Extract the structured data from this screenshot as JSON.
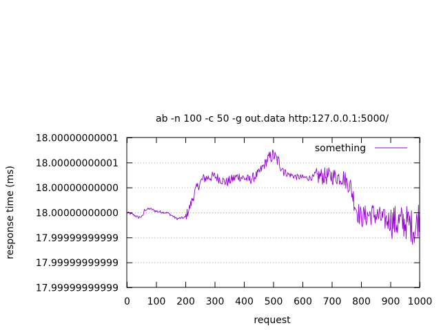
{
  "chart_data": {
    "type": "line",
    "title": "ab -n 100 -c 50 -g out.data http:127.0.0.1:5000/",
    "xlabel": "request",
    "ylabel": "response time (ms)",
    "xlim": [
      0,
      1000
    ],
    "x_ticks": [
      0,
      100,
      200,
      300,
      400,
      500,
      600,
      700,
      800,
      900,
      1000
    ],
    "y_ticks": [
      "17.99999999999",
      "17.99999999999",
      "17.99999999999",
      "18.00000000000",
      "18.00000000000",
      "18.00000000001",
      "18.00000000001"
    ],
    "ylim_levels": [
      0,
      6
    ],
    "grid": "horizontal dotted",
    "legend_position": "top-right",
    "series": [
      {
        "name": "something",
        "color": "#9400d3",
        "x_step": 2,
        "y_levels_note": "values in tick-level units (0 = 17.99999999999 lowest tick, 6 = 18.00000000001 top tick)",
        "keypoints": [
          [
            0,
            3.0
          ],
          [
            20,
            2.92
          ],
          [
            40,
            2.8
          ],
          [
            55,
            2.85
          ],
          [
            60,
            3.1
          ],
          [
            80,
            3.15
          ],
          [
            100,
            3.05
          ],
          [
            140,
            2.98
          ],
          [
            170,
            2.75
          ],
          [
            200,
            2.8
          ],
          [
            215,
            3.2
          ],
          [
            235,
            3.9
          ],
          [
            260,
            4.35
          ],
          [
            300,
            4.45
          ],
          [
            340,
            4.2
          ],
          [
            380,
            4.45
          ],
          [
            420,
            4.3
          ],
          [
            450,
            4.55
          ],
          [
            480,
            5.1
          ],
          [
            500,
            5.3
          ],
          [
            520,
            5.0
          ],
          [
            545,
            4.55
          ],
          [
            580,
            4.42
          ],
          [
            620,
            4.38
          ],
          [
            660,
            4.45
          ],
          [
            700,
            4.45
          ],
          [
            740,
            4.4
          ],
          [
            765,
            4.0
          ],
          [
            785,
            3.1
          ],
          [
            800,
            2.8
          ],
          [
            840,
            2.95
          ],
          [
            880,
            2.7
          ],
          [
            920,
            2.6
          ],
          [
            960,
            2.6
          ],
          [
            985,
            2.3
          ],
          [
            1000,
            3.0
          ]
        ],
        "noise_segments": [
          [
            0,
            200,
            0.05
          ],
          [
            200,
            480,
            0.2
          ],
          [
            480,
            540,
            0.28
          ],
          [
            540,
            640,
            0.12
          ],
          [
            640,
            760,
            0.35
          ],
          [
            760,
            900,
            0.45
          ],
          [
            900,
            1000,
            0.7
          ]
        ]
      }
    ]
  }
}
